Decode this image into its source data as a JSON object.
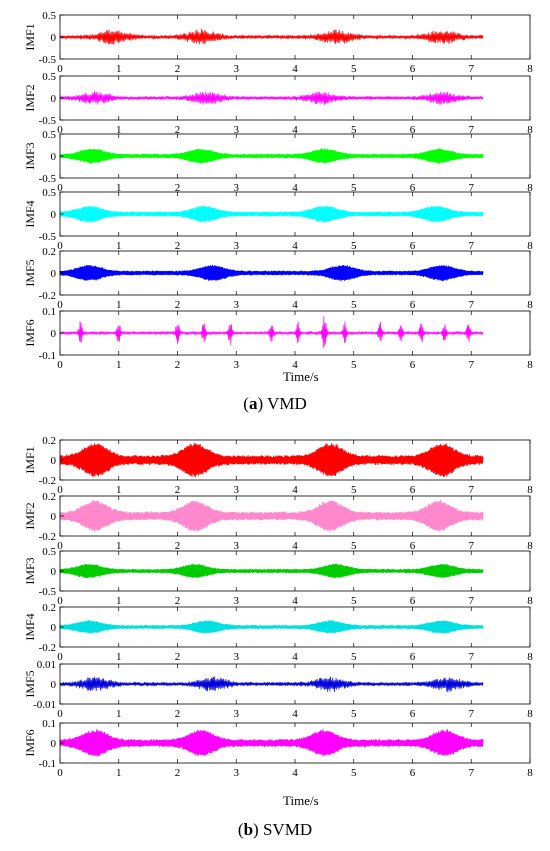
{
  "figure": {
    "caption_a": {
      "letter": "a",
      "text": "VMD"
    },
    "caption_b": {
      "letter": "b",
      "text": "SVMD"
    }
  },
  "chart_data": [
    {
      "type": "line",
      "title": "",
      "xlabel": "Time/s",
      "xlim": [
        0,
        8
      ],
      "xticks": [
        0,
        1,
        2,
        3,
        4,
        5,
        6,
        7,
        8
      ],
      "signal_duration": 7.2,
      "series": [
        {
          "name": "IMF1",
          "color": "#ff0000",
          "ylim": [
            -0.5,
            0.5
          ],
          "yticks": [
            "0.5",
            "0",
            "-0.5"
          ],
          "amplitude": 0.16,
          "fill": false,
          "bursts": [
            0.9,
            2.4,
            4.7,
            6.5
          ]
        },
        {
          "name": "IMF2",
          "color": "#ff00ff",
          "ylim": [
            -0.5,
            0.5
          ],
          "yticks": [
            "0.5",
            "0",
            "-0.5"
          ],
          "amplitude": 0.14,
          "fill": false,
          "bursts": [
            0.6,
            2.5,
            4.45,
            6.5
          ]
        },
        {
          "name": "IMF3",
          "color": "#00ff00",
          "ylim": [
            -0.5,
            0.5
          ],
          "yticks": [
            "0.5",
            "0",
            "-0.5"
          ],
          "amplitude": 0.15,
          "fill": true,
          "bursts": [
            0.55,
            2.4,
            4.5,
            6.45
          ]
        },
        {
          "name": "IMF4",
          "color": "#00ffff",
          "ylim": [
            -0.5,
            0.5
          ],
          "yticks": [
            "0.5",
            "0",
            "-0.5"
          ],
          "amplitude": 0.17,
          "fill": true,
          "bursts": [
            0.5,
            2.45,
            4.5,
            6.4
          ]
        },
        {
          "name": "IMF5",
          "color": "#0000ff",
          "ylim": [
            -0.2,
            0.2
          ],
          "yticks": [
            "0.2",
            "0",
            "-0.2"
          ],
          "amplitude": 0.065,
          "fill": true,
          "bursts": [
            0.5,
            2.6,
            4.8,
            6.5
          ]
        },
        {
          "name": "IMF6",
          "color": "#ff00ff",
          "ylim": [
            -0.1,
            0.1
          ],
          "yticks": [
            "0.1",
            "0",
            "-0.1"
          ],
          "amplitude": 0.07,
          "fill": false,
          "spikes": [
            0.35,
            1.0,
            2.0,
            2.45,
            2.9,
            3.6,
            4.05,
            4.5,
            4.85,
            5.45,
            5.8,
            6.15,
            6.55,
            6.95
          ]
        }
      ]
    },
    {
      "type": "line",
      "title": "",
      "xlabel": "Time/s",
      "xlim": [
        0,
        8
      ],
      "xticks": [
        0,
        1,
        2,
        3,
        4,
        5,
        6,
        7,
        8
      ],
      "signal_duration": 7.2,
      "series": [
        {
          "name": "IMF1",
          "color": "#ff0000",
          "ylim": [
            -0.2,
            0.2
          ],
          "yticks": [
            "0.2",
            "0",
            "-0.2"
          ],
          "amplitude": 0.15,
          "fill": true,
          "bursts": [
            0.6,
            2.3,
            4.6,
            6.5
          ]
        },
        {
          "name": "IMF2",
          "color": "#ff88cc",
          "ylim": [
            -0.2,
            0.2
          ],
          "yticks": [
            "0.2",
            "0",
            "-0.2"
          ],
          "amplitude": 0.14,
          "fill": true,
          "bursts": [
            0.6,
            2.3,
            4.6,
            6.45
          ]
        },
        {
          "name": "IMF3",
          "color": "#00cc00",
          "ylim": [
            -0.5,
            0.5
          ],
          "yticks": [
            "0.5",
            "0",
            "-0.5"
          ],
          "amplitude": 0.16,
          "fill": true,
          "bursts": [
            0.5,
            2.3,
            4.7,
            6.5
          ]
        },
        {
          "name": "IMF4",
          "color": "#00e0e0",
          "ylim": [
            -0.2,
            0.2
          ],
          "yticks": [
            "0.2",
            "0",
            "-0.2"
          ],
          "amplitude": 0.06,
          "fill": true,
          "bursts": [
            0.5,
            2.5,
            4.6,
            6.5
          ]
        },
        {
          "name": "IMF5",
          "color": "#0000dd",
          "ylim": [
            -0.01,
            0.01
          ],
          "yticks": [
            "0.01",
            "0",
            "-0.01"
          ],
          "amplitude": 0.0035,
          "fill": false,
          "bursts": [
            0.6,
            2.6,
            4.6,
            6.6
          ]
        },
        {
          "name": "IMF6",
          "color": "#ff00ff",
          "ylim": [
            -0.1,
            0.1
          ],
          "yticks": [
            "0.1",
            "0",
            "-0.1"
          ],
          "amplitude": 0.06,
          "fill": true,
          "bursts": [
            0.6,
            2.4,
            4.5,
            6.55
          ]
        }
      ]
    }
  ]
}
